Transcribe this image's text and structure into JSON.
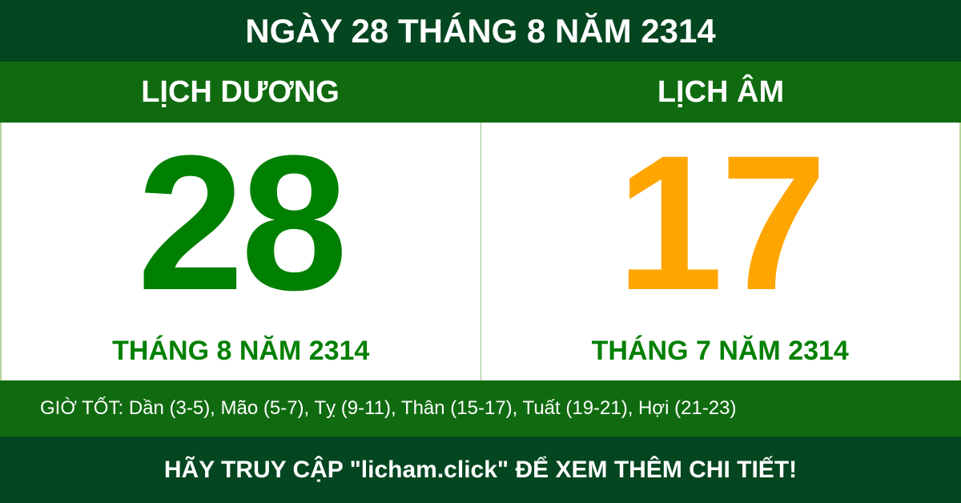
{
  "header": {
    "title": "NGÀY 28 THÁNG 8 NĂM 2314"
  },
  "solar": {
    "label": "LỊCH DƯƠNG",
    "day": "28",
    "month_year": "THÁNG 8 NĂM 2314"
  },
  "lunar": {
    "label": "LỊCH ÂM",
    "day": "17",
    "month_year": "THÁNG 7 NĂM 2314"
  },
  "good_hours": "GIỜ TỐT: Dần (3-5), Mão (5-7), Tỵ (9-11), Thân (15-17), Tuất (19-21), Hợi (21-23)",
  "footer": "HÃY TRUY CẬP \"licham.click\" ĐỂ XEM THÊM CHI TIẾT!",
  "colors": {
    "dark_green": "#034620",
    "green_band": "#106b10",
    "solar_day": "#008000",
    "lunar_day": "#ffa500"
  }
}
